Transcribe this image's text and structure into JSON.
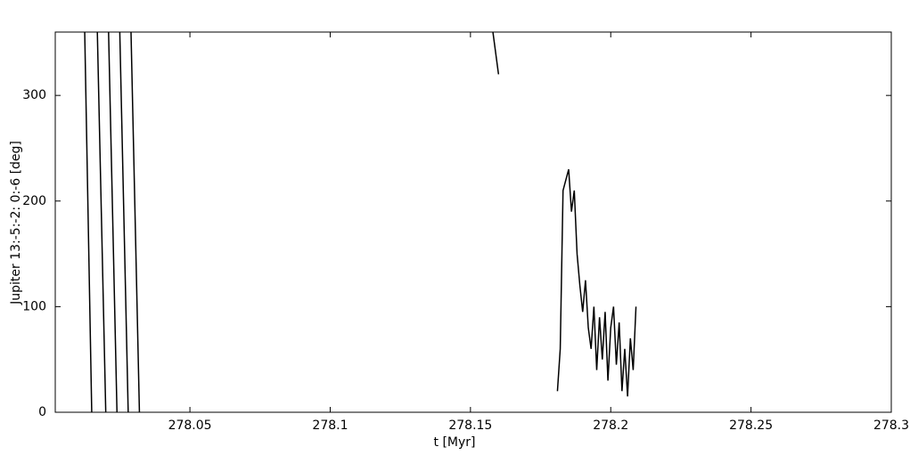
{
  "chart_data": {
    "type": "line",
    "xlabel": "t [Myr]",
    "ylabel": "Jupiter 13:-5:-2: 0:-6 [deg]",
    "xlim": [
      278.002,
      278.3
    ],
    "ylim": [
      0,
      360
    ],
    "xticks": [
      278.05,
      278.1,
      278.15,
      278.2,
      278.25,
      278.3
    ],
    "yticks": [
      0,
      100,
      200,
      300
    ],
    "series": [
      {
        "color": "#000000",
        "x": [
          278.0125,
          278.015,
          null,
          278.017,
          278.02,
          null,
          278.021,
          278.024,
          null,
          278.025,
          278.028,
          null,
          278.029,
          278.032,
          null,
          278.158,
          278.16,
          null,
          278.181,
          278.182,
          278.183,
          278.185,
          278.186,
          278.187,
          278.188,
          278.189,
          278.19,
          278.191,
          278.192,
          278.193,
          278.194,
          278.195,
          278.196,
          278.197,
          278.198,
          278.199,
          278.2,
          278.201,
          278.202,
          278.203,
          278.204,
          278.205,
          278.206,
          278.207,
          278.208,
          278.209
        ],
        "values": [
          360,
          0,
          null,
          360,
          0,
          null,
          360,
          0,
          null,
          360,
          0,
          null,
          360,
          0,
          null,
          360,
          320,
          null,
          20,
          60,
          210,
          230,
          190,
          210,
          150,
          120,
          95,
          125,
          80,
          60,
          100,
          40,
          90,
          50,
          95,
          30,
          80,
          100,
          45,
          85,
          20,
          60,
          15,
          70,
          40,
          100
        ]
      }
    ]
  }
}
